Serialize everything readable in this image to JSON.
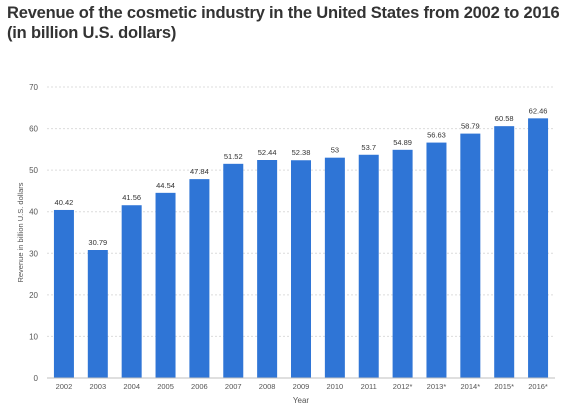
{
  "title_line1": "Revenue of the cosmetic industry in the United States from 2002 to 2016",
  "title_line2": "(in billion U.S. dollars)",
  "chart_data": {
    "type": "bar",
    "categories": [
      "2002",
      "2003",
      "2004",
      "2005",
      "2006",
      "2007",
      "2008",
      "2009",
      "2010",
      "2011",
      "2012*",
      "2013*",
      "2014*",
      "2015*",
      "2016*"
    ],
    "values": [
      40.42,
      30.79,
      41.56,
      44.54,
      47.84,
      51.52,
      52.44,
      52.38,
      53,
      53.7,
      54.89,
      56.63,
      58.79,
      60.58,
      62.46
    ],
    "value_labels": [
      "40.42",
      "30.79",
      "41.56",
      "44.54",
      "47.84",
      "51.52",
      "52.44",
      "52.38",
      "53",
      "53.7",
      "54.89",
      "56.63",
      "58.79",
      "60.58",
      "62.46"
    ],
    "xlabel": "Year",
    "ylabel": "Revenue in billion U.S. dollars",
    "ylim": [
      0,
      70
    ],
    "yticks": [
      "0",
      "10",
      "20",
      "30",
      "40",
      "50",
      "60",
      "70"
    ],
    "grid": true,
    "bar_color": "#2f75d6"
  }
}
